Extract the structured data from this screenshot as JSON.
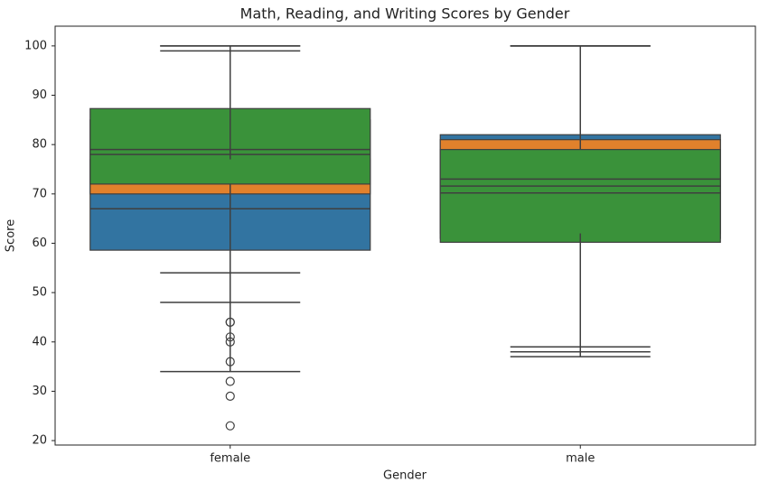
{
  "chart_data": {
    "type": "box",
    "title": "Math, Reading, and Writing Scores by Gender",
    "x_label": "Gender",
    "y_label": "Score",
    "categories": [
      "female",
      "male"
    ],
    "series": [
      {
        "color": "#3274a1",
        "values": [
          {
            "whislo": 34,
            "q1": 58.6,
            "med": 67,
            "q3": 77,
            "whishi": 100,
            "fliers": [
              32,
              29,
              23
            ]
          },
          {
            "whislo": 39,
            "q1": 62,
            "med": 73,
            "q3": 82,
            "whishi": 100,
            "fliers": []
          }
        ]
      },
      {
        "color": "#e1812c",
        "values": [
          {
            "whislo": 48,
            "q1": 70,
            "med": 78,
            "q3": 85,
            "whishi": 100,
            "fliers": [
              44,
              41,
              40
            ]
          },
          {
            "whislo": 38,
            "q1": 61,
            "med": 71.6,
            "q3": 81,
            "whishi": 100,
            "fliers": []
          }
        ]
      },
      {
        "color": "#3a923a",
        "values": [
          {
            "whislo": 54,
            "q1": 72,
            "med": 79,
            "q3": 87.3,
            "whishi": 99,
            "fliers": [
              44,
              36
            ]
          },
          {
            "whislo": 37,
            "q1": 60.2,
            "med": 70.2,
            "q3": 79,
            "whishi": 100,
            "fliers": []
          }
        ]
      }
    ],
    "ylim": [
      19.1,
      104.0
    ],
    "yticks": [
      20,
      30,
      40,
      50,
      60,
      70,
      80,
      90,
      100
    ],
    "grid": false
  }
}
